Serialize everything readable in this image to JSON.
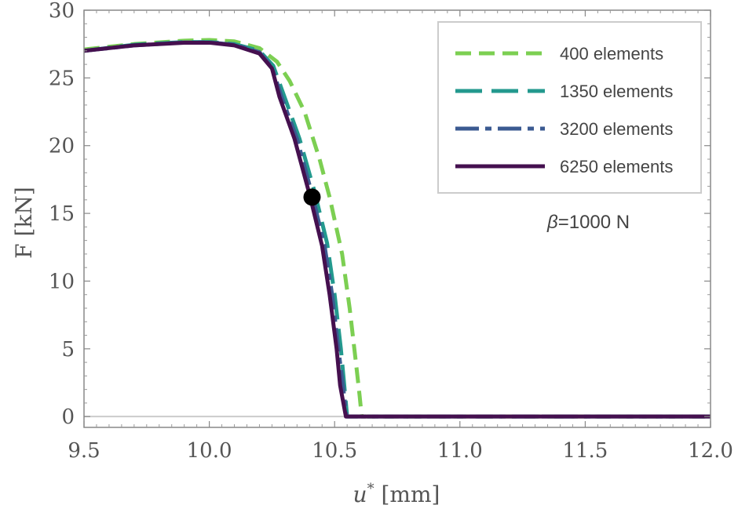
{
  "chart_data": {
    "type": "line",
    "title": "",
    "xlabel_symbol": "u",
    "xlabel_sup": "*",
    "xlabel_unit": " [mm]",
    "ylabel": "F [kN]",
    "xlim": [
      9.5,
      12.0
    ],
    "ylim": [
      -0.8,
      30
    ],
    "x_ticks": [
      9.5,
      10.0,
      10.5,
      11.0,
      11.5,
      12.0
    ],
    "x_tick_labels": [
      "9.5",
      "10.0",
      "10.5",
      "11.0",
      "11.5",
      "12.0"
    ],
    "y_ticks": [
      0,
      5,
      10,
      15,
      20,
      25,
      30
    ],
    "y_tick_labels": [
      "0",
      "5",
      "10",
      "15",
      "20",
      "25",
      "30"
    ],
    "legend_position": "top-right",
    "series": [
      {
        "name": "400 elements",
        "color": "#7ccf52",
        "dash": "dash",
        "points": [
          [
            9.5,
            27.1
          ],
          [
            9.7,
            27.5
          ],
          [
            9.9,
            27.75
          ],
          [
            10.0,
            27.8
          ],
          [
            10.1,
            27.7
          ],
          [
            10.2,
            27.2
          ],
          [
            10.27,
            26.2
          ],
          [
            10.32,
            24.8
          ],
          [
            10.38,
            22.5
          ],
          [
            10.44,
            19.0
          ],
          [
            10.48,
            16.2
          ],
          [
            10.53,
            12.0
          ],
          [
            10.56,
            8.0
          ],
          [
            10.585,
            4.0
          ],
          [
            10.6,
            1.5
          ],
          [
            10.608,
            0.0
          ],
          [
            12.0,
            0.0
          ]
        ]
      },
      {
        "name": "1350 elements",
        "color": "#23998e",
        "dash": "longdash",
        "points": [
          [
            9.5,
            27.0
          ],
          [
            9.7,
            27.45
          ],
          [
            9.9,
            27.65
          ],
          [
            10.0,
            27.65
          ],
          [
            10.1,
            27.5
          ],
          [
            10.2,
            27.0
          ],
          [
            10.255,
            25.9
          ],
          [
            10.3,
            23.6
          ],
          [
            10.36,
            20.5
          ],
          [
            10.42,
            16.6
          ],
          [
            10.47,
            12.8
          ],
          [
            10.5,
            9.0
          ],
          [
            10.525,
            5.0
          ],
          [
            10.54,
            2.0
          ],
          [
            10.55,
            0.0
          ],
          [
            12.0,
            0.0
          ]
        ]
      },
      {
        "name": "3200 elements",
        "color": "#3b5a91",
        "dash": "dashdot",
        "points": [
          [
            9.5,
            27.0
          ],
          [
            9.7,
            27.4
          ],
          [
            9.9,
            27.62
          ],
          [
            10.0,
            27.62
          ],
          [
            10.1,
            27.45
          ],
          [
            10.2,
            26.9
          ],
          [
            10.25,
            25.8
          ],
          [
            10.29,
            23.5
          ],
          [
            10.35,
            20.5
          ],
          [
            10.41,
            16.4
          ],
          [
            10.46,
            12.6
          ],
          [
            10.49,
            9.0
          ],
          [
            10.515,
            5.0
          ],
          [
            10.535,
            2.0
          ],
          [
            10.548,
            0.0
          ],
          [
            12.0,
            0.0
          ]
        ]
      },
      {
        "name": "6250 elements",
        "color": "#45104f",
        "dash": "solid",
        "points": [
          [
            9.5,
            27.0
          ],
          [
            9.7,
            27.4
          ],
          [
            9.9,
            27.6
          ],
          [
            10.0,
            27.6
          ],
          [
            10.1,
            27.4
          ],
          [
            10.2,
            26.8
          ],
          [
            10.25,
            25.7
          ],
          [
            10.28,
            23.6
          ],
          [
            10.34,
            20.5
          ],
          [
            10.4,
            16.4
          ],
          [
            10.45,
            12.6
          ],
          [
            10.48,
            9.0
          ],
          [
            10.508,
            5.0
          ],
          [
            10.522,
            2.3
          ],
          [
            10.545,
            0.0
          ],
          [
            12.0,
            0.0
          ]
        ]
      }
    ],
    "marker": {
      "x": 10.41,
      "y": 16.2,
      "color": "#000000"
    },
    "annotation": {
      "symbol": "β",
      "text": "=1000 N"
    }
  }
}
